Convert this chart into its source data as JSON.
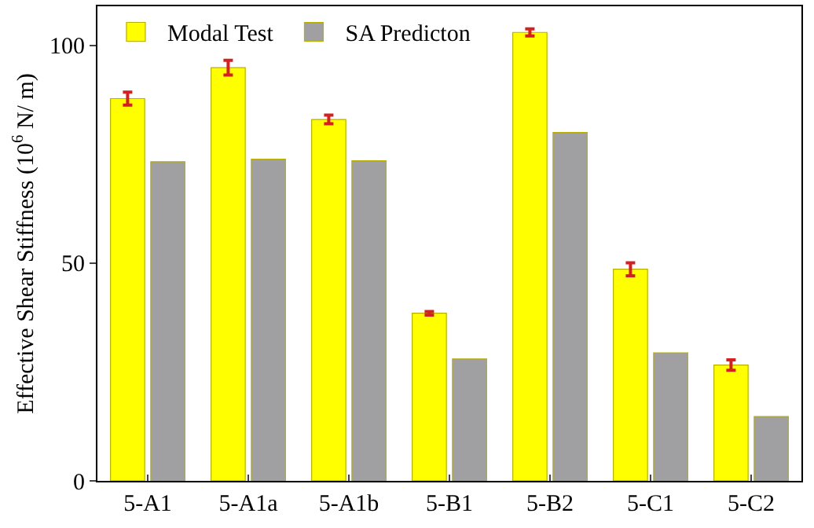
{
  "chart_data": {
    "type": "bar",
    "ylabel": "Effective Shear Stiffness (10$^{6}$ N/ m)",
    "categories": [
      "5-A1",
      "5-A1a",
      "5-A1b",
      "5-B1",
      "5-B2",
      "5-C1",
      "5-C2"
    ],
    "series": [
      {
        "name": "Modal Test",
        "color": "#ffff00",
        "values": [
          87.8,
          94.9,
          83,
          38.5,
          103,
          48.6,
          26.6
        ],
        "errors": [
          1.5,
          1.7,
          1,
          0.4,
          0.8,
          1.5,
          1.2
        ]
      },
      {
        "name": "SA Predicton",
        "color": "#a0a0a2",
        "values": [
          73.3,
          73.9,
          73.5,
          28,
          80,
          29.4,
          14.8
        ]
      }
    ],
    "ylim": [
      0,
      109
    ],
    "yticks": [
      0,
      50,
      100
    ],
    "grid": false,
    "legend": "top left"
  }
}
